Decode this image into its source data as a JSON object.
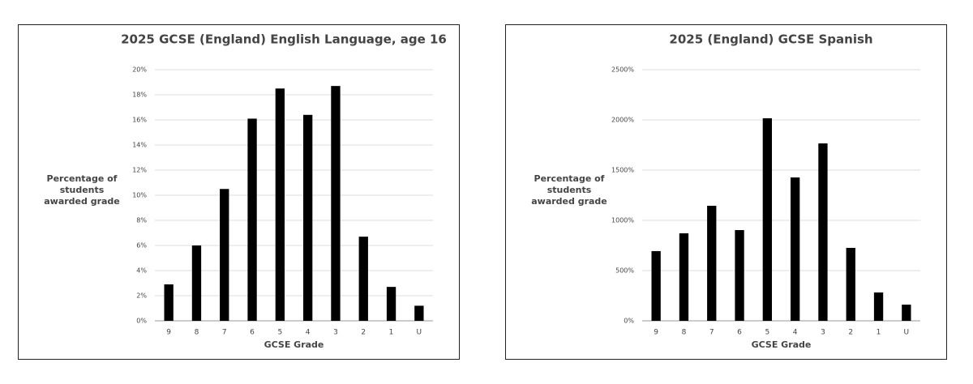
{
  "chart_data": [
    {
      "type": "bar",
      "title": "2025 GCSE (England) English Language, age 16",
      "y_label": "Percentage of students awarded grade",
      "x_label": "GCSE Grade",
      "categories": [
        "9",
        "8",
        "7",
        "6",
        "5",
        "4",
        "3",
        "2",
        "1",
        "U"
      ],
      "values": [
        2.9,
        6.0,
        10.5,
        16.1,
        18.5,
        16.4,
        18.7,
        6.7,
        2.7,
        1.2
      ],
      "color": "#000000",
      "grid": true,
      "ylim": [
        0,
        20
      ],
      "yticks": [
        {
          "value": 0,
          "label": "0%"
        },
        {
          "value": 2,
          "label": "2%"
        },
        {
          "value": 4,
          "label": "4%"
        },
        {
          "value": 6,
          "label": "6%"
        },
        {
          "value": 8,
          "label": "8%"
        },
        {
          "value": 10,
          "label": "10%"
        },
        {
          "value": 12,
          "label": "12%"
        },
        {
          "value": 14,
          "label": "14%"
        },
        {
          "value": 16,
          "label": "16%"
        },
        {
          "value": 18,
          "label": "18%"
        },
        {
          "value": 20,
          "label": "20%"
        }
      ]
    },
    {
      "type": "bar",
      "title": "2025 (England) GCSE Spanish",
      "y_label": "Percentage of students awarded grade",
      "x_label": "GCSE Grade",
      "categories": [
        "9",
        "8",
        "7",
        "6",
        "5",
        "4",
        "3",
        "2",
        "1",
        "U"
      ],
      "values": [
        694,
        871,
        1145,
        903,
        2016,
        1427,
        1766,
        726,
        282,
        161
      ],
      "color": "#000000",
      "grid": true,
      "ylim": [
        0,
        2500
      ],
      "yticks": [
        {
          "value": 0,
          "label": "0%"
        },
        {
          "value": 500,
          "label": "500%"
        },
        {
          "value": 1000,
          "label": "1000%"
        },
        {
          "value": 1500,
          "label": "1500%"
        },
        {
          "value": 2000,
          "label": "2000%"
        },
        {
          "value": 2500,
          "label": "2500%"
        }
      ]
    }
  ]
}
